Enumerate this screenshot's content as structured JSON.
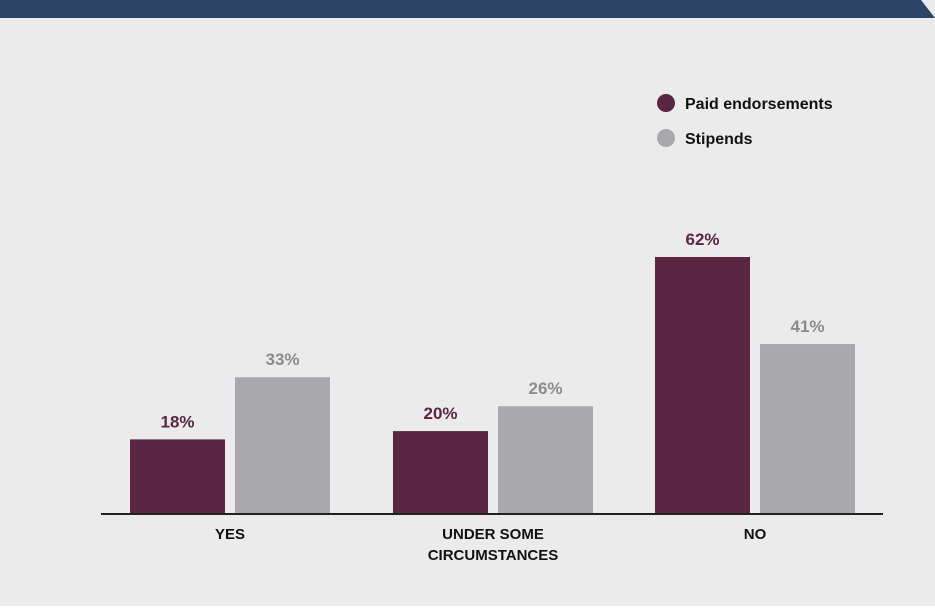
{
  "chart_data": {
    "type": "bar",
    "categories": [
      "YES",
      "UNDER SOME CIRCUMSTANCES",
      "NO"
    ],
    "category_lines": [
      [
        "YES"
      ],
      [
        "UNDER SOME",
        "CIRCUMSTANCES"
      ],
      [
        "NO"
      ]
    ],
    "series": [
      {
        "name": "Paid endorsements",
        "values": [
          18,
          20,
          62
        ],
        "labels": [
          "18%",
          "20%",
          "62%"
        ],
        "color": "#5b2641"
      },
      {
        "name": "Stipends",
        "values": [
          33,
          26,
          41
        ],
        "labels": [
          "33%",
          "26%",
          "41%"
        ],
        "color": "#a9a8ac"
      }
    ],
    "title": "",
    "xlabel": "",
    "ylabel": "",
    "ylim": [
      0,
      62
    ],
    "grid": false,
    "legend_position": "top-right"
  },
  "colors": {
    "header": "#2c4566",
    "background": "#ebebeb",
    "axis": "#222222"
  }
}
